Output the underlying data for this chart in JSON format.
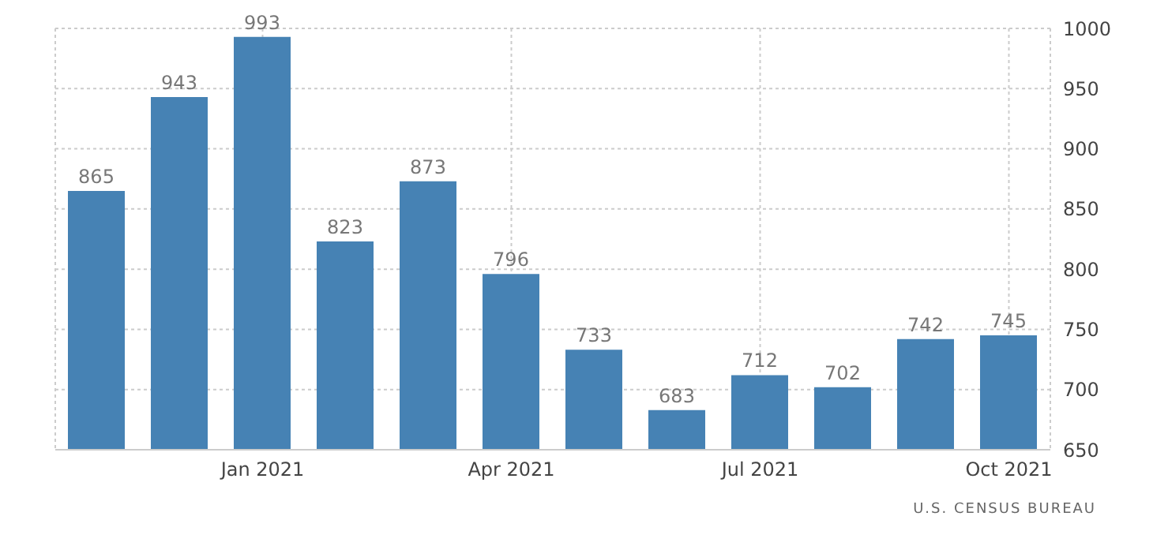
{
  "chart_data": {
    "type": "bar",
    "categories": [
      null,
      null,
      "Jan 2021",
      null,
      null,
      "Apr 2021",
      null,
      null,
      "Jul 2021",
      null,
      null,
      "Oct 2021"
    ],
    "values": [
      865,
      943,
      993,
      823,
      873,
      796,
      733,
      683,
      712,
      702,
      742,
      745
    ],
    "color": "#4682b4",
    "ylim": [
      650,
      1000
    ],
    "yticks": [
      650,
      700,
      750,
      800,
      850,
      900,
      950,
      1000
    ],
    "grid": true,
    "data_labels": true,
    "annotations": [
      "U.S. CENSUS BUREAU"
    ]
  }
}
